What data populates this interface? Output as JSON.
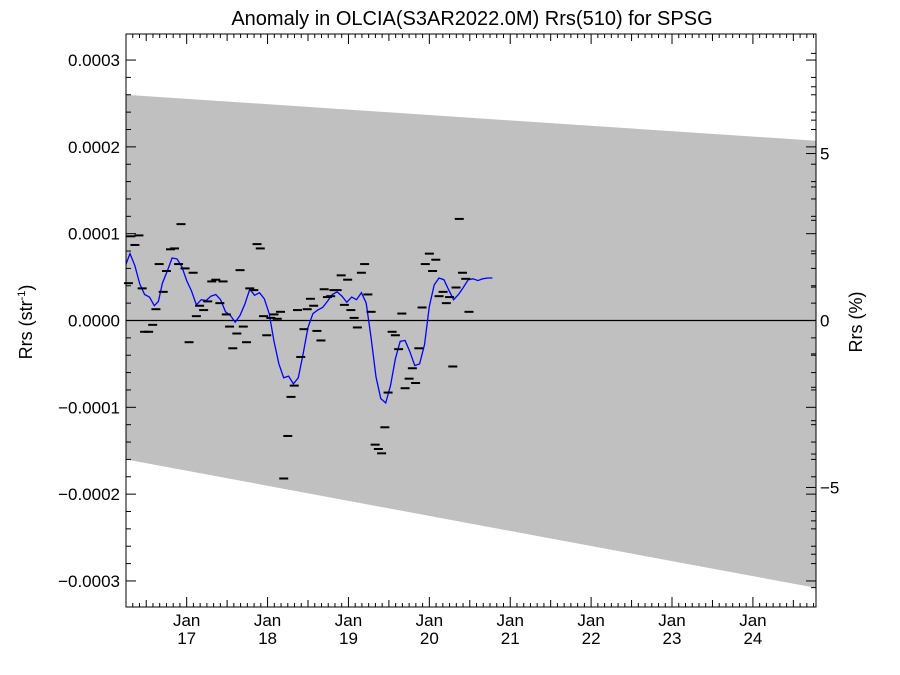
{
  "chart_data": {
    "type": "scatter",
    "title": "Anomaly in OLCIA(S3AR2022.0M) Rrs(510) for SPSG",
    "ylabel_main": "Rrs (str",
    "ylabel_sup": "-1",
    "ylabel_close": ")",
    "ylabel_right": "Rrs (%)",
    "xlim": [
      2016.25,
      2024.78
    ],
    "ylim": [
      -0.00033,
      0.00033
    ],
    "y2lim": [
      -8.58,
      8.58
    ],
    "yticks": [
      {
        "v": 0.0003,
        "label": "0.0003"
      },
      {
        "v": 0.0002,
        "label": "0.0002"
      },
      {
        "v": 0.0001,
        "label": "0.0001"
      },
      {
        "v": 0.0,
        "label": "0.0000"
      },
      {
        "v": -0.0001,
        "label": "−0.0001"
      },
      {
        "v": -0.0002,
        "label": "−0.0002"
      },
      {
        "v": -0.0003,
        "label": "−0.0003"
      }
    ],
    "y2ticks": [
      {
        "v": 5,
        "label": "5"
      },
      {
        "v": 0,
        "label": "0"
      },
      {
        "v": -5,
        "label": "−5"
      }
    ],
    "xticks": [
      {
        "v": 2017,
        "month": "Jan",
        "year": "17"
      },
      {
        "v": 2018,
        "month": "Jan",
        "year": "18"
      },
      {
        "v": 2019,
        "month": "Jan",
        "year": "19"
      },
      {
        "v": 2020,
        "month": "Jan",
        "year": "20"
      },
      {
        "v": 2021,
        "month": "Jan",
        "year": "21"
      },
      {
        "v": 2022,
        "month": "Jan",
        "year": "22"
      },
      {
        "v": 2023,
        "month": "Jan",
        "year": "23"
      },
      {
        "v": 2024,
        "month": "Jan",
        "year": "24"
      }
    ],
    "band": {
      "color": "#c0c0c0",
      "upper": [
        [
          2016.25,
          0.00026
        ],
        [
          2024.78,
          0.000207
        ]
      ],
      "lower": [
        [
          2016.25,
          -0.00016
        ],
        [
          2024.78,
          -0.000308
        ]
      ]
    },
    "zero_line": 0,
    "points_color": "#000000",
    "points": [
      [
        2016.28,
        4.3e-05
      ],
      [
        2016.31,
        9.7e-05
      ],
      [
        2016.36,
        8.7e-05
      ],
      [
        2016.41,
        9.8e-05
      ],
      [
        2016.45,
        3.7e-05
      ],
      [
        2016.48,
        -1.3e-05
      ],
      [
        2016.53,
        -1.3e-05
      ],
      [
        2016.58,
        -5e-06
      ],
      [
        2016.62,
        1.3e-05
      ],
      [
        2016.66,
        6.5e-05
      ],
      [
        2016.71,
        3.3e-05
      ],
      [
        2016.75,
        5.7e-05
      ],
      [
        2016.8,
        8.2e-05
      ],
      [
        2016.85,
        8.3e-05
      ],
      [
        2016.9,
        6.5e-05
      ],
      [
        2016.93,
        0.000111
      ],
      [
        2016.98,
        6e-05
      ],
      [
        2017.03,
        -2.5e-05
      ],
      [
        2017.08,
        5.5e-05
      ],
      [
        2017.12,
        5e-06
      ],
      [
        2017.16,
        1.7e-05
      ],
      [
        2017.21,
        1.2e-05
      ],
      [
        2017.26,
        2.2e-05
      ],
      [
        2017.31,
        4.5e-05
      ],
      [
        2017.36,
        4.7e-05
      ],
      [
        2017.41,
        2e-05
      ],
      [
        2017.45,
        4.5e-05
      ],
      [
        2017.49,
        7e-06
      ],
      [
        2017.53,
        -7e-06
      ],
      [
        2017.57,
        -3.2e-05
      ],
      [
        2017.62,
        -1.5e-05
      ],
      [
        2017.66,
        5.8e-05
      ],
      [
        2017.7,
        -7e-06
      ],
      [
        2017.74,
        -2.5e-05
      ],
      [
        2017.78,
        3.7e-05
      ],
      [
        2017.83,
        3.5e-05
      ],
      [
        2017.87,
        8.8e-05
      ],
      [
        2017.91,
        8.3e-05
      ],
      [
        2017.95,
        5e-06
      ],
      [
        2017.99,
        -1.7e-05
      ],
      [
        2018.04,
        3e-06
      ],
      [
        2018.08,
        7e-06
      ],
      [
        2018.12,
        2e-06
      ],
      [
        2018.16,
        1e-05
      ],
      [
        2018.2,
        -0.000182
      ],
      [
        2018.25,
        -0.000133
      ],
      [
        2018.29,
        -8.8e-05
      ],
      [
        2018.33,
        -7.5e-05
      ],
      [
        2018.37,
        1.2e-05
      ],
      [
        2018.41,
        -4.2e-05
      ],
      [
        2018.45,
        -1e-05
      ],
      [
        2018.49,
        1.3e-05
      ],
      [
        2018.53,
        2.5e-05
      ],
      [
        2018.57,
        1.7e-05
      ],
      [
        2018.61,
        -1.2e-05
      ],
      [
        2018.66,
        -2.3e-05
      ],
      [
        2018.7,
        3.6e-05
      ],
      [
        2018.74,
        2.7e-05
      ],
      [
        2018.78,
        2.8e-05
      ],
      [
        2018.82,
        3.5e-05
      ],
      [
        2018.86,
        3.5e-05
      ],
      [
        2018.91,
        5.2e-05
      ],
      [
        2018.95,
        1.8e-05
      ],
      [
        2018.99,
        4.7e-05
      ],
      [
        2019.03,
        1.2e-05
      ],
      [
        2019.07,
        3e-06
      ],
      [
        2019.11,
        -8e-06
      ],
      [
        2019.16,
        5.5e-05
      ],
      [
        2019.2,
        6.5e-05
      ],
      [
        2019.24,
        3e-05
      ],
      [
        2019.28,
        1e-05
      ],
      [
        2019.33,
        -0.000143
      ],
      [
        2019.37,
        -0.000148
      ],
      [
        2019.41,
        -0.000153
      ],
      [
        2019.45,
        -0.000123
      ],
      [
        2019.49,
        -8.3e-05
      ],
      [
        2019.54,
        -1.3e-05
      ],
      [
        2019.58,
        -1.7e-05
      ],
      [
        2019.62,
        -3.3e-05
      ],
      [
        2019.66,
        8e-06
      ],
      [
        2019.7,
        -7.8e-05
      ],
      [
        2019.75,
        -6.7e-05
      ],
      [
        2019.79,
        -5.5e-05
      ],
      [
        2019.83,
        -7.2e-05
      ],
      [
        2019.87,
        -3.2e-05
      ],
      [
        2019.91,
        1.5e-05
      ],
      [
        2019.95,
        6.5e-05
      ],
      [
        2020.0,
        7.7e-05
      ],
      [
        2020.04,
        5.7e-05
      ],
      [
        2020.08,
        7e-05
      ],
      [
        2020.12,
        2.8e-05
      ],
      [
        2020.17,
        3.3e-05
      ],
      [
        2020.21,
        2e-05
      ],
      [
        2020.25,
        2.7e-05
      ],
      [
        2020.29,
        -5.3e-05
      ],
      [
        2020.33,
        3.8e-05
      ],
      [
        2020.37,
        0.000117
      ],
      [
        2020.41,
        5.5e-05
      ],
      [
        2020.45,
        4.8e-05
      ],
      [
        2020.49,
        1e-05
      ]
    ],
    "series": [
      {
        "color": "#0000ff",
        "x": [
          2016.25,
          2016.3,
          2016.36,
          2016.42,
          2016.48,
          2016.54,
          2016.6,
          2016.65,
          2016.7,
          2016.76,
          2016.82,
          2016.88,
          2016.94,
          2017.0,
          2017.06,
          2017.12,
          2017.18,
          2017.24,
          2017.3,
          2017.36,
          2017.42,
          2017.48,
          2017.54,
          2017.6,
          2017.66,
          2017.72,
          2017.78,
          2017.84,
          2017.9,
          2017.96,
          2018.02,
          2018.08,
          2018.14,
          2018.2,
          2018.26,
          2018.32,
          2018.38,
          2018.44,
          2018.5,
          2018.56,
          2018.62,
          2018.68,
          2018.74,
          2018.8,
          2018.86,
          2018.92,
          2018.98,
          2019.04,
          2019.1,
          2019.16,
          2019.22,
          2019.28,
          2019.34,
          2019.4,
          2019.46,
          2019.52,
          2019.58,
          2019.64,
          2019.7,
          2019.76,
          2019.82,
          2019.88,
          2019.94,
          2020.0,
          2020.06,
          2020.12,
          2020.18,
          2020.24,
          2020.3,
          2020.36,
          2020.42,
          2020.48,
          2020.54,
          2020.6,
          2020.66,
          2020.72,
          2020.78
        ],
        "values": [
          6.5e-05,
          7.7e-05,
          6.3e-05,
          4.2e-05,
          3e-05,
          2.7e-05,
          1.7e-05,
          2.2e-05,
          4.3e-05,
          5.7e-05,
          7.2e-05,
          7.1e-05,
          6.2e-05,
          4.6e-05,
          3.4e-05,
          1.8e-05,
          2.4e-05,
          2.3e-05,
          2.8e-05,
          3e-05,
          2.4e-05,
          1e-05,
          6e-06,
          -2e-06,
          6e-06,
          1.9e-05,
          3.6e-05,
          2.9e-05,
          3.2e-05,
          2.5e-05,
          8e-06,
          -2.4e-05,
          -5e-05,
          -6.6e-05,
          -6.4e-05,
          -7.3e-05,
          -6.6e-05,
          -3.8e-05,
          -8e-06,
          8e-06,
          1.2e-05,
          1.5e-05,
          2.2e-05,
          3e-05,
          3.3e-05,
          2.8e-05,
          2.1e-05,
          2.7e-05,
          2.4e-05,
          3.2e-05,
          2e-05,
          -2e-05,
          -6.5e-05,
          -9e-05,
          -9.5e-05,
          -7.5e-05,
          -4.4e-05,
          -2.4e-05,
          -2.3e-05,
          -3.6e-05,
          -5.2e-05,
          -5e-05,
          -2.8e-05,
          1.6e-05,
          4.1e-05,
          4.9e-05,
          4.7e-05,
          3.5e-05,
          2.4e-05,
          3e-05,
          3.8e-05,
          4.7e-05,
          4.8e-05,
          4.6e-05,
          4.8e-05,
          4.9e-05,
          4.9e-05
        ]
      }
    ]
  }
}
